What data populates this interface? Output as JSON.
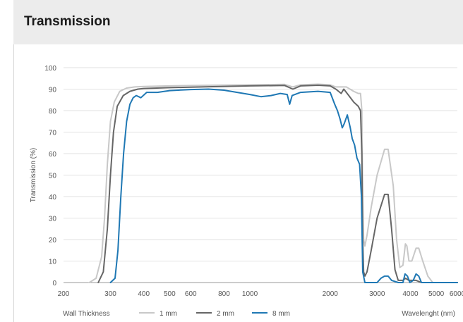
{
  "header": {
    "title": "Transmission"
  },
  "chart_data": {
    "type": "line",
    "title": "Transmission",
    "xlabel": "Wavelenght (nm)",
    "ylabel": "Transmission (%)",
    "x_scale": "log",
    "xlim": [
      200,
      6000
    ],
    "ylim": [
      0,
      100
    ],
    "x_ticks": [
      200,
      300,
      400,
      500,
      600,
      800,
      1000,
      2000,
      3000,
      4000,
      5000,
      6000
    ],
    "x_tick_labels": [
      "200",
      "300",
      "400",
      "500",
      "600",
      "800",
      "1000",
      "2000",
      "3000",
      "4000",
      "5000",
      "6000"
    ],
    "y_ticks": [
      0,
      10,
      20,
      30,
      40,
      50,
      60,
      70,
      80,
      90,
      100
    ],
    "y_tick_labels": [
      "0",
      "10",
      "20",
      "30",
      "40",
      "50",
      "60",
      "70",
      "80",
      "90",
      "100"
    ],
    "grid": "horizontal",
    "legend": {
      "title": "Wall Thickness",
      "placement": "bottom"
    },
    "series": [
      {
        "name": "1 mm",
        "color": "#c8c8c8",
        "points": [
          [
            250,
            0
          ],
          [
            265,
            2
          ],
          [
            278,
            12
          ],
          [
            285,
            30
          ],
          [
            292,
            55
          ],
          [
            300,
            75
          ],
          [
            310,
            84
          ],
          [
            325,
            89
          ],
          [
            345,
            90.5
          ],
          [
            370,
            91
          ],
          [
            400,
            91.2
          ],
          [
            500,
            91.5
          ],
          [
            700,
            91.8
          ],
          [
            1000,
            92
          ],
          [
            1350,
            92.2
          ],
          [
            1450,
            91
          ],
          [
            1550,
            92
          ],
          [
            1800,
            92.3
          ],
          [
            2000,
            92
          ],
          [
            2100,
            91
          ],
          [
            2300,
            91
          ],
          [
            2450,
            89
          ],
          [
            2550,
            88
          ],
          [
            2600,
            88
          ],
          [
            2630,
            80
          ],
          [
            2650,
            40
          ],
          [
            2670,
            20
          ],
          [
            2700,
            17
          ],
          [
            2750,
            22
          ],
          [
            2850,
            35
          ],
          [
            3000,
            50
          ],
          [
            3200,
            62
          ],
          [
            3300,
            62
          ],
          [
            3450,
            45
          ],
          [
            3550,
            20
          ],
          [
            3650,
            7
          ],
          [
            3750,
            8
          ],
          [
            3830,
            18
          ],
          [
            3880,
            17
          ],
          [
            3950,
            10
          ],
          [
            4050,
            10
          ],
          [
            4200,
            16
          ],
          [
            4300,
            16
          ],
          [
            4450,
            10
          ],
          [
            4650,
            3
          ],
          [
            4850,
            0
          ],
          [
            6000,
            0
          ]
        ]
      },
      {
        "name": "2 mm",
        "color": "#666666",
        "points": [
          [
            270,
            0
          ],
          [
            282,
            5
          ],
          [
            292,
            25
          ],
          [
            300,
            50
          ],
          [
            308,
            70
          ],
          [
            318,
            82
          ],
          [
            335,
            87
          ],
          [
            355,
            89
          ],
          [
            380,
            90
          ],
          [
            400,
            90.3
          ],
          [
            500,
            90.7
          ],
          [
            700,
            91.1
          ],
          [
            1000,
            91.5
          ],
          [
            1350,
            91.7
          ],
          [
            1450,
            90
          ],
          [
            1550,
            91.5
          ],
          [
            1800,
            91.8
          ],
          [
            2000,
            91.5
          ],
          [
            2100,
            90
          ],
          [
            2200,
            88
          ],
          [
            2250,
            90
          ],
          [
            2350,
            87
          ],
          [
            2450,
            84
          ],
          [
            2550,
            82
          ],
          [
            2600,
            80
          ],
          [
            2630,
            60
          ],
          [
            2650,
            20
          ],
          [
            2670,
            5
          ],
          [
            2700,
            3
          ],
          [
            2750,
            5
          ],
          [
            2850,
            15
          ],
          [
            3000,
            30
          ],
          [
            3200,
            41
          ],
          [
            3300,
            41
          ],
          [
            3400,
            25
          ],
          [
            3500,
            6
          ],
          [
            3600,
            1
          ],
          [
            3750,
            1
          ],
          [
            3830,
            2
          ],
          [
            3950,
            1
          ],
          [
            4200,
            1
          ],
          [
            4400,
            0
          ],
          [
            6000,
            0
          ]
        ]
      },
      {
        "name": "8 mm",
        "color": "#1f78b4",
        "points": [
          [
            300,
            0
          ],
          [
            312,
            2
          ],
          [
            320,
            15
          ],
          [
            328,
            40
          ],
          [
            336,
            60
          ],
          [
            345,
            75
          ],
          [
            355,
            83
          ],
          [
            365,
            86
          ],
          [
            375,
            87
          ],
          [
            390,
            86
          ],
          [
            410,
            88.5
          ],
          [
            450,
            88.5
          ],
          [
            500,
            89.3
          ],
          [
            600,
            89.8
          ],
          [
            700,
            90
          ],
          [
            800,
            89.5
          ],
          [
            1000,
            87.5
          ],
          [
            1100,
            86.5
          ],
          [
            1200,
            87
          ],
          [
            1300,
            88
          ],
          [
            1380,
            87.5
          ],
          [
            1410,
            83
          ],
          [
            1440,
            87
          ],
          [
            1550,
            88.5
          ],
          [
            1800,
            89
          ],
          [
            2000,
            88.5
          ],
          [
            2080,
            83
          ],
          [
            2130,
            80
          ],
          [
            2180,
            76
          ],
          [
            2220,
            72
          ],
          [
            2260,
            74
          ],
          [
            2320,
            78
          ],
          [
            2380,
            72
          ],
          [
            2420,
            67
          ],
          [
            2470,
            64
          ],
          [
            2520,
            58
          ],
          [
            2580,
            55
          ],
          [
            2620,
            40
          ],
          [
            2650,
            5
          ],
          [
            2700,
            0
          ],
          [
            3000,
            0
          ],
          [
            3100,
            2
          ],
          [
            3200,
            3
          ],
          [
            3300,
            3
          ],
          [
            3400,
            1
          ],
          [
            3600,
            0
          ],
          [
            3750,
            0
          ],
          [
            3820,
            4
          ],
          [
            3900,
            3
          ],
          [
            3980,
            0
          ],
          [
            4100,
            1
          ],
          [
            4200,
            4
          ],
          [
            4300,
            3
          ],
          [
            4400,
            0
          ],
          [
            6000,
            0
          ]
        ]
      }
    ]
  }
}
